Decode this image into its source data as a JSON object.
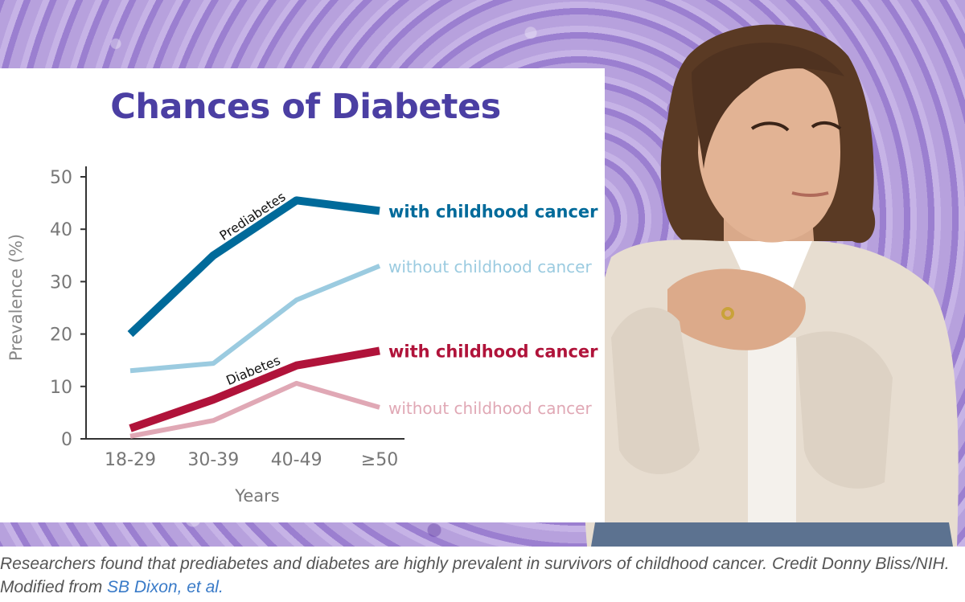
{
  "chart_data": {
    "type": "line",
    "title": "Chances of Diabetes",
    "xlabel": "Years",
    "ylabel": "Prevalence (%)",
    "categories": [
      "18-29",
      "30-39",
      "40-49",
      "≥50"
    ],
    "ylim": [
      0,
      50
    ],
    "yticks": [
      0,
      10,
      20,
      30,
      40,
      50
    ],
    "series": [
      {
        "name": "with childhood cancer",
        "group": "Prediabetes",
        "color": "#006a9a",
        "width": 10,
        "values": [
          20,
          35,
          45.5,
          43.5
        ]
      },
      {
        "name": "without childhood cancer",
        "group": "Prediabetes",
        "color": "#9bcbe0",
        "width": 6,
        "values": [
          13,
          14.4,
          26.5,
          33
        ]
      },
      {
        "name": "with childhood cancer",
        "group": "Diabetes",
        "color": "#b0133a",
        "width": 10,
        "values": [
          2,
          7.5,
          14,
          16.8
        ]
      },
      {
        "name": "without childhood cancer",
        "group": "Diabetes",
        "color": "#e0a8b5",
        "width": 6,
        "values": [
          0.5,
          3.5,
          10.6,
          6
        ]
      }
    ],
    "annotations": [
      {
        "text": "Prediabetes"
      },
      {
        "text": "Diabetes"
      }
    ]
  },
  "caption": {
    "text": "Researchers found that prediabetes and diabetes are highly prevalent in survivors of childhood cancer. Credit Donny Bliss/NIH. Modified from ",
    "link_text": "SB Dixon, et al."
  },
  "photo": {
    "subject": "woman-with-clasped-hands"
  }
}
